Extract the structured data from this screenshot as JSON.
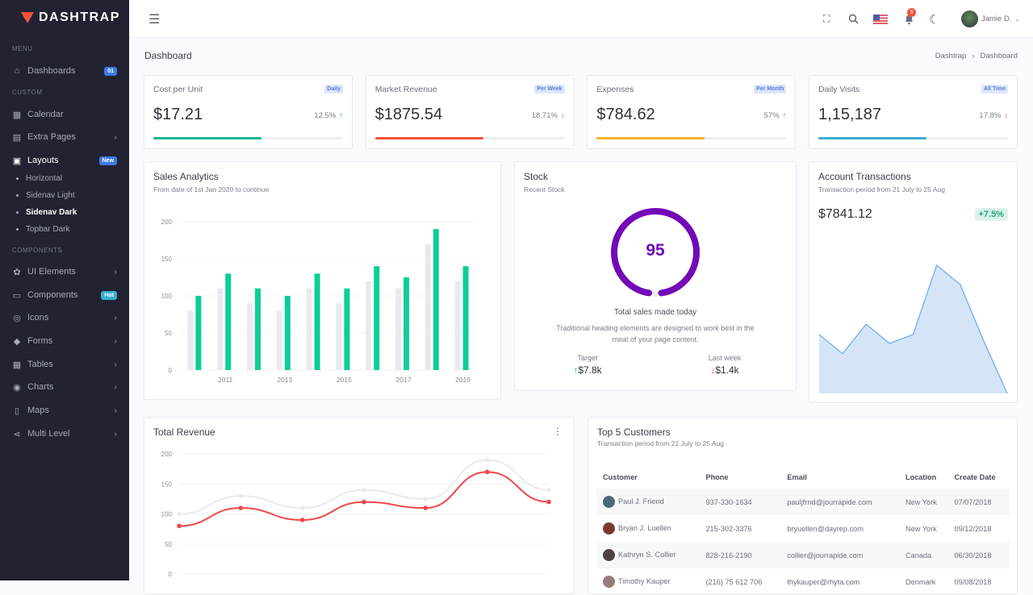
{
  "brand": {
    "name": "DASHTRAP"
  },
  "sidebar": {
    "sections": [
      "MENU",
      "CUSTOM",
      "COMPONENTS"
    ],
    "items": [
      {
        "label": "Dashboards",
        "icon": "home-icon",
        "badge": "01",
        "badge_color": "#3e7be6"
      },
      {
        "label": "Calendar",
        "icon": "calendar-icon"
      },
      {
        "label": "Extra Pages",
        "icon": "file-icon",
        "chevron": true
      },
      {
        "label": "Layouts",
        "icon": "layout-icon",
        "badge": "New",
        "badge_color": "#3e7be6",
        "active": true
      },
      {
        "label": "UI Elements",
        "icon": "palette-icon",
        "chevron": true
      },
      {
        "label": "Components",
        "icon": "briefcase-icon",
        "badge": "Hot",
        "badge_color": "#39afd1"
      },
      {
        "label": "Icons",
        "icon": "aperture-icon",
        "chevron": true
      },
      {
        "label": "Forms",
        "icon": "eraser-icon",
        "chevron": true
      },
      {
        "label": "Tables",
        "icon": "table-icon",
        "chevron": true
      },
      {
        "label": "Charts",
        "icon": "chart-donut-icon",
        "chevron": true
      },
      {
        "label": "Maps",
        "icon": "map-icon",
        "chevron": true
      },
      {
        "label": "Multi Level",
        "icon": "share-icon",
        "chevron": true
      }
    ],
    "layout_subitems": [
      {
        "label": "Horizontal"
      },
      {
        "label": "Sidenav Light"
      },
      {
        "label": "Sidenav Dark",
        "active": true
      },
      {
        "label": "Topbar Dark"
      }
    ]
  },
  "topbar": {
    "notifications": "9",
    "user": "Jamie D."
  },
  "page": {
    "title": "Dashboard",
    "breadcrumb": [
      "Dashtrap",
      "Dashboard"
    ]
  },
  "stats": [
    {
      "label": "Cost per Unit",
      "tag": "Daily",
      "value": "$17.21",
      "change": "12.5%",
      "dir": "up",
      "progress": 57,
      "color": "#1bb394"
    },
    {
      "label": "Market Revenue",
      "tag": "Per Week",
      "value": "$1875.54",
      "change": "18.71%",
      "dir": "down",
      "progress": 57,
      "color": "#f0533a"
    },
    {
      "label": "Expenses",
      "tag": "Per Month",
      "value": "$784.62",
      "change": "57%",
      "dir": "up",
      "progress": 57,
      "color": "#f3b32a"
    },
    {
      "label": "Daily Visits",
      "tag": "All Time",
      "value": "1,15,187",
      "change": "17.8%",
      "dir": "down",
      "progress": 57,
      "color": "#39afd1"
    }
  ],
  "sales": {
    "title": "Sales Analytics",
    "subtitle": "From date of 1st Jan 2020 to continue"
  },
  "stock": {
    "title": "Stock",
    "subtitle": "Recent Stock",
    "value": "95",
    "percent": 95,
    "color": "#7209b7",
    "caption": "Total sales made today",
    "description": "Traditional heading elements are designed to work best in the meat of your page content.",
    "target_label": "Target",
    "target_value": "$7.8k",
    "lastweek_label": "Last week",
    "lastweek_value": "$1.4k"
  },
  "account": {
    "title": "Account Transactions",
    "subtitle": "Transaction period from 21 July to 25 Aug",
    "value": "$7841.12",
    "change": "+7.5%"
  },
  "revenue": {
    "title": "Total Revenue"
  },
  "customers": {
    "title": "Top 5 Customers",
    "subtitle": "Transaction period from 21 July to 25 Aug",
    "columns": [
      "Customer",
      "Phone",
      "Email",
      "Location",
      "Create Date"
    ],
    "rows": [
      [
        "Paul J. Friend",
        "937-330-1634",
        "pauljfrnd@jourrapide.com",
        "New York",
        "07/07/2018"
      ],
      [
        "Bryan J. Luellen",
        "215-302-3376",
        "bryuellen@dayrep.com",
        "New York",
        "09/12/2018"
      ],
      [
        "Kathryn S. Collier",
        "828-216-2190",
        "collier@jourrapide.com",
        "Canada",
        "06/30/2018"
      ],
      [
        "Timothy Kauper",
        "(216) 75 612 706",
        "thykauper@rhyta.com",
        "Denmark",
        "09/08/2018"
      ]
    ]
  },
  "chart_data": [
    {
      "type": "bar",
      "categories": [
        "",
        "2011",
        "",
        "2013",
        "",
        "2015",
        "",
        "2017",
        "",
        "2019"
      ],
      "ylim": [
        0,
        200
      ],
      "yticks": [
        0,
        50,
        100,
        150,
        200
      ],
      "grid": true,
      "series": [
        {
          "values": [
            80,
            110,
            90,
            80,
            110,
            90,
            120,
            110,
            170,
            120
          ],
          "color": "#e8eaee"
        },
        {
          "values": [
            100,
            130,
            110,
            100,
            130,
            110,
            140,
            125,
            190,
            140
          ],
          "color": "#0acf97"
        }
      ]
    },
    {
      "type": "area",
      "values": [
        46,
        31,
        54,
        39,
        46,
        100,
        85,
        41,
        0
      ],
      "color": "#6cb0ee",
      "fill": "#d5e5f7"
    },
    {
      "type": "line",
      "ylim": [
        0,
        200
      ],
      "yticks": [
        0,
        50,
        100,
        150,
        200
      ],
      "grid": true,
      "series": [
        {
          "values": [
            100,
            130,
            110,
            140,
            125,
            190,
            140
          ],
          "color": "#e8eaee"
        },
        {
          "values": [
            80,
            110,
            90,
            120,
            110,
            170,
            120
          ],
          "color": "#f04848"
        }
      ]
    }
  ]
}
